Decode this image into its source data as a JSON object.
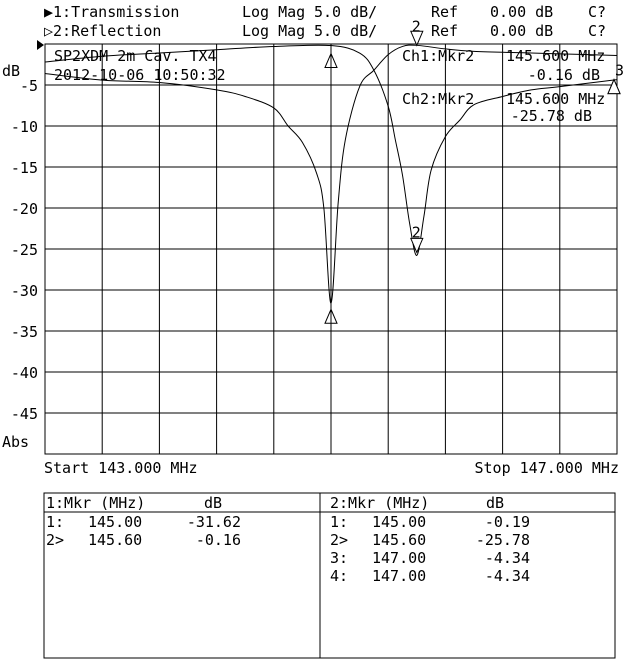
{
  "header": {
    "ch1": {
      "label": "▶1:Transmission",
      "format": "Log Mag",
      "scale": "5.0 dB/",
      "ref_label": "Ref",
      "ref": "0.00 dB",
      "cal": "C?"
    },
    "ch2": {
      "label": "▷2:Reflection",
      "format": "Log Mag",
      "scale": "5.0 dB/",
      "ref_label": "Ref",
      "ref": "0.00 dB",
      "cal": "C?"
    }
  },
  "annotations": {
    "title": "SP2XDM 2m Cav. TX4",
    "datetime": "2012-10-06 10:50:32",
    "ch1_marker_label": "Ch1:Mkr2",
    "ch1_marker_freq": "145.600 MHz",
    "ch1_marker_value": "-0.16 dB",
    "ch2_marker_label": "Ch2:Mkr2",
    "ch2_marker_freq": "145.600 MHz",
    "ch2_marker_value": "-25.78 dB"
  },
  "axis": {
    "ylabel": "dB",
    "yunit_mode": "Abs",
    "yticks": [
      "-5",
      "-10",
      "-15",
      "-20",
      "-25",
      "-30",
      "-35",
      "-40",
      "-45"
    ],
    "start": "Start 143.000 MHz",
    "stop": "Stop 147.000 MHz"
  },
  "chart_data": {
    "type": "line",
    "xlim": [
      143.0,
      147.0
    ],
    "ylim": [
      -50,
      0
    ],
    "grid": true,
    "x_divisions": 10,
    "y_divisions": 10,
    "series": [
      {
        "name": "1:Transmission",
        "x": [
          143.0,
          143.4,
          143.8,
          144.2,
          144.4,
          144.6,
          144.7,
          144.8,
          144.9,
          144.95,
          145.0,
          145.05,
          145.1,
          145.2,
          145.3,
          145.4,
          145.5,
          145.6,
          145.8,
          146.0,
          146.4,
          146.8,
          147.0
        ],
        "y": [
          -3.6,
          -4.4,
          -4.7,
          -5.6,
          -6.4,
          -7.8,
          -10.0,
          -12.0,
          -15.8,
          -20.0,
          -31.62,
          -19.4,
          -11.7,
          -5.2,
          -3.2,
          -1.3,
          -0.3,
          -0.16,
          -0.6,
          -0.9,
          -1.1,
          -1.3,
          -1.4
        ],
        "markers": [
          {
            "n": "1",
            "x": 145.0,
            "y": -31.62
          },
          {
            "n": "2",
            "x": 145.6,
            "y": -0.16
          }
        ]
      },
      {
        "name": "2:Reflection",
        "x": [
          143.0,
          143.4,
          143.8,
          144.2,
          144.6,
          145.0,
          145.2,
          145.3,
          145.4,
          145.45,
          145.5,
          145.55,
          145.6,
          145.65,
          145.7,
          145.8,
          145.9,
          146.0,
          146.2,
          146.4,
          146.6,
          147.0
        ],
        "y": [
          -2.2,
          -1.5,
          -1.1,
          -0.7,
          -0.3,
          -0.19,
          -1.1,
          -3.2,
          -7.6,
          -11.7,
          -16.0,
          -21.9,
          -25.78,
          -21.0,
          -15.4,
          -11.3,
          -9.3,
          -7.4,
          -6.4,
          -5.6,
          -5.2,
          -4.34
        ],
        "markers": [
          {
            "n": "1",
            "x": 145.0,
            "y": -0.19
          },
          {
            "n": "2",
            "x": 145.6,
            "y": -25.78
          },
          {
            "n": "3",
            "x": 147.0,
            "y": -4.34
          },
          {
            "n": "4",
            "x": 147.0,
            "y": -4.34
          }
        ]
      }
    ]
  },
  "table": {
    "ch1": {
      "header_mkr": "1:Mkr (MHz)",
      "header_db": "dB",
      "rows": [
        {
          "id": "1:",
          "freq": "145.00",
          "db": "-31.62"
        },
        {
          "id": "2>",
          "freq": "145.60",
          "db": "-0.16"
        }
      ]
    },
    "ch2": {
      "header_mkr": "2:Mkr (MHz)",
      "header_db": "dB",
      "rows": [
        {
          "id": "1:",
          "freq": "145.00",
          "db": "-0.19"
        },
        {
          "id": "2>",
          "freq": "145.60",
          "db": "-25.78"
        },
        {
          "id": "3:",
          "freq": "147.00",
          "db": "-4.34"
        },
        {
          "id": "4:",
          "freq": "147.00",
          "db": "-4.34"
        }
      ]
    }
  }
}
